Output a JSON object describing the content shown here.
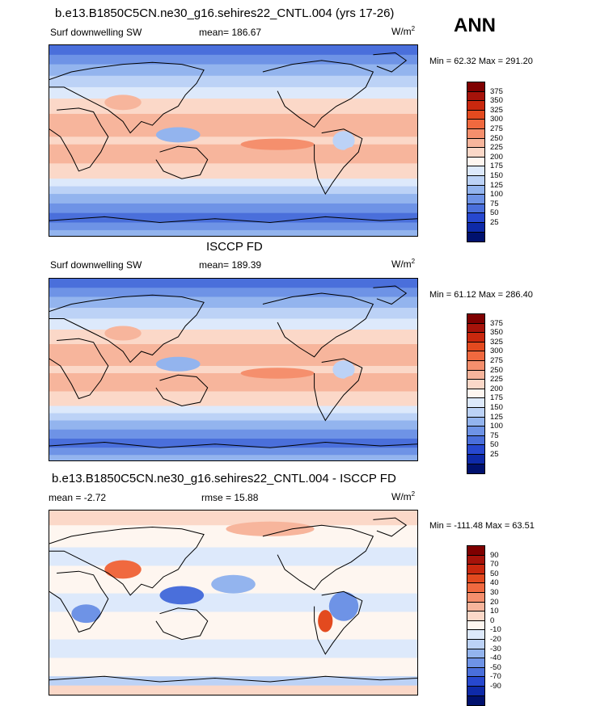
{
  "header": {
    "ann_label": "ANN"
  },
  "panels": [
    {
      "title": "b.e13.B1850C5CN.ne30_g16.sehires22_CNTL.004 (yrs 17-26)",
      "left_label": "Surf downwelling SW",
      "center_label": "mean= 186.67",
      "units_base": "W/m",
      "units_exp": "2",
      "minmax": "Min =  62.32 Max = 291.20",
      "colorbar_labels": [
        "375",
        "350",
        "325",
        "300",
        "275",
        "250",
        "225",
        "200",
        "175",
        "150",
        "125",
        "100",
        "75",
        "50",
        "25"
      ],
      "colors": [
        "#7f0000",
        "#a6130a",
        "#c9280e",
        "#e34a1f",
        "#f0693f",
        "#f58f6d",
        "#f7b59c",
        "#fbd8c8",
        "#fef6f0",
        "#dde9fb",
        "#bcd2f6",
        "#93b4ee",
        "#6e93e6",
        "#4a6fdb",
        "#2748cf",
        "#0e2aa8",
        "#00116e"
      ]
    },
    {
      "title": "ISCCP FD",
      "left_label": "Surf downwelling SW",
      "center_label": "mean= 189.39",
      "units_base": "W/m",
      "units_exp": "2",
      "minmax": "Min =  61.12 Max = 286.40",
      "colorbar_labels": [
        "375",
        "350",
        "325",
        "300",
        "275",
        "250",
        "225",
        "200",
        "175",
        "150",
        "125",
        "100",
        "75",
        "50",
        "25"
      ]
    },
    {
      "title": "b.e13.B1850C5CN.ne30_g16.sehires22_CNTL.004 - ISCCP FD",
      "left_label": "mean =  -2.72",
      "center_label": "rmse =  15.88",
      "units_base": "W/m",
      "units_exp": "2",
      "minmax": "Min = -111.48 Max =  63.51",
      "colorbar_labels": [
        "90",
        "70",
        "50",
        "40",
        "30",
        "20",
        "10",
        "0",
        "-10",
        "-20",
        "-30",
        "-40",
        "-50",
        "-70",
        "-90"
      ]
    }
  ]
}
